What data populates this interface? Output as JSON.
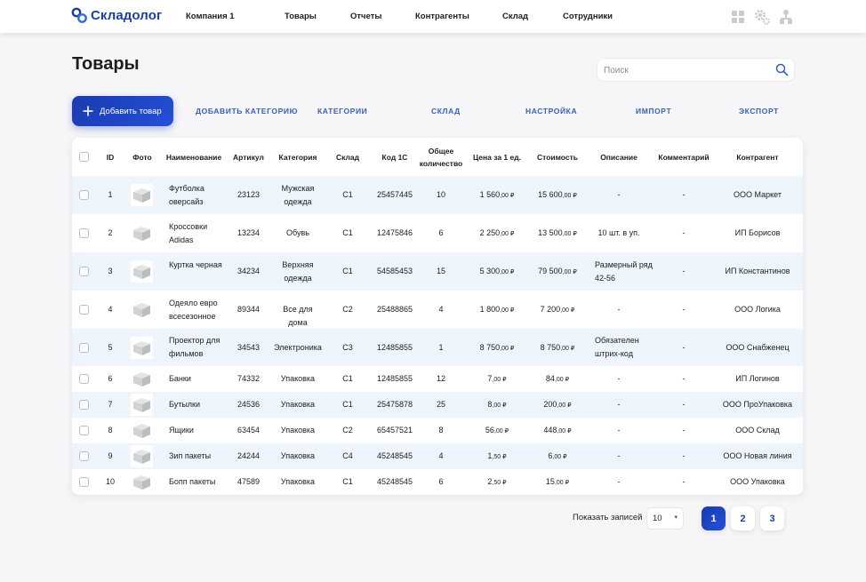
{
  "app": {
    "logo_text": "Складолог"
  },
  "nav": {
    "items": [
      "Компания 1",
      "Товары",
      "Отчеты",
      "Контрагенты",
      "Склад",
      "Сотрудники"
    ]
  },
  "page": {
    "title": "Товары"
  },
  "search": {
    "placeholder": "Поиск"
  },
  "actions": {
    "add_label": "Добавить товар",
    "links": [
      "ДОБАВИТЬ КАТЕГОРИЮ",
      "КАТЕГОРИИ",
      "СКЛАД",
      "НАСТРОЙКА",
      "ИМПОРТ",
      "ЭКСПОРТ"
    ]
  },
  "table": {
    "columns": [
      "ID",
      "Фото",
      "Наименование",
      "Артикул",
      "Категория",
      "Склад",
      "Код 1С",
      "Общее количество",
      "Цена за 1 ед.",
      "Стоимость",
      "Описание",
      "Комментарий",
      "Контрагент"
    ],
    "rows": [
      {
        "id": "1",
        "name": "Футболка оверсайз",
        "article": "23123",
        "category": "Мужская одежда",
        "warehouse": "С1",
        "code": "25457445",
        "qty": "10",
        "price_int": "1 560",
        "price_dec": ",00 ₽",
        "cost_int": "15 600",
        "cost_dec": ",00 ₽",
        "desc": "-",
        "comment": "-",
        "contractor": "ООО Маркет"
      },
      {
        "id": "2",
        "name": "Кроссовки Adidas",
        "article": "13234",
        "category": "Обувь",
        "warehouse": "С1",
        "code": "12475846",
        "qty": "6",
        "price_int": "2 250",
        "price_dec": ",00 ₽",
        "cost_int": "13 500",
        "cost_dec": ",00 ₽",
        "desc": "10 шт. в уп.",
        "comment": "-",
        "contractor": "ИП Борисов"
      },
      {
        "id": "3",
        "name": "Куртка черная",
        "article": "34234",
        "category": "Верхняя одежда",
        "warehouse": "С1",
        "code": "54585453",
        "qty": "15",
        "price_int": "5 300",
        "price_dec": ",00 ₽",
        "cost_int": "79 500",
        "cost_dec": ",00 ₽",
        "desc": "Размерный ряд 42-56",
        "comment": "-",
        "contractor": "ИП Константинов"
      },
      {
        "id": "4",
        "name": "Одеяло евро всесезонное",
        "article": "89344",
        "category": "Все для дома",
        "warehouse": "С2",
        "code": "25488865",
        "qty": "4",
        "price_int": "1 800",
        "price_dec": ",00 ₽",
        "cost_int": "7 200",
        "cost_dec": ",00 ₽",
        "desc": "-",
        "comment": "-",
        "contractor": "ООО Логика"
      },
      {
        "id": "5",
        "name": "Проектор для фильмов",
        "article": "34543",
        "category": "Электроника",
        "warehouse": "С3",
        "code": "12485855",
        "qty": "1",
        "price_int": "8 750",
        "price_dec": ",00 ₽",
        "cost_int": "8 750",
        "cost_dec": ",00 ₽",
        "desc": "Обязателен штрих-код",
        "comment": "-",
        "contractor": "ООО Снабженец"
      },
      {
        "id": "6",
        "name": "Банки",
        "article": "74332",
        "category": "Упаковка",
        "warehouse": "С1",
        "code": "12485855",
        "qty": "12",
        "price_int": "7",
        "price_dec": ",00 ₽",
        "cost_int": "84",
        "cost_dec": ",00 ₽",
        "desc": "-",
        "comment": "-",
        "contractor": "ИП Логинов"
      },
      {
        "id": "7",
        "name": "Бутылки",
        "article": "24536",
        "category": "Упаковка",
        "warehouse": "С1",
        "code": "25475878",
        "qty": "25",
        "price_int": "8",
        "price_dec": ",00 ₽",
        "cost_int": "200",
        "cost_dec": ",00 ₽",
        "desc": "-",
        "comment": "-",
        "contractor": "ООО ПроУпаковка"
      },
      {
        "id": "8",
        "name": "Ящики",
        "article": "63454",
        "category": "Упаковка",
        "warehouse": "С2",
        "code": "65457521",
        "qty": "8",
        "price_int": "56",
        "price_dec": ",00 ₽",
        "cost_int": "448",
        "cost_dec": ",00 ₽",
        "desc": "-",
        "comment": "-",
        "contractor": "ООО Склад"
      },
      {
        "id": "9",
        "name": "Зип пакеты",
        "article": "24244",
        "category": "Упаковка",
        "warehouse": "С4",
        "code": "45248545",
        "qty": "4",
        "price_int": "1",
        "price_dec": ",50 ₽",
        "cost_int": "6",
        "cost_dec": ",00 ₽",
        "desc": "-",
        "comment": "-",
        "contractor": "ООО Новая линия"
      },
      {
        "id": "10",
        "name": "Бопп пакеты",
        "article": "47589",
        "category": "Упаковка",
        "warehouse": "С1",
        "code": "45248545",
        "qty": "6",
        "price_int": "2",
        "price_dec": ",50 ₽",
        "cost_int": "15",
        "cost_dec": ",00 ₽",
        "desc": "-",
        "comment": "-",
        "contractor": "ООО Упаковка"
      }
    ]
  },
  "pagination": {
    "label": "Показать записей",
    "per_page": "10",
    "pages": [
      "1",
      "2",
      "3"
    ],
    "current": "1"
  },
  "colors": {
    "accent": "#1d3ea6",
    "row_alt": "#eef5fc",
    "link": "#3b5eb5"
  },
  "icons": {
    "logo": "chain-link-icon",
    "top": [
      "grid-icon",
      "gear-icon",
      "org-chart-icon"
    ],
    "search": "search-icon",
    "add": "plus-icon"
  }
}
